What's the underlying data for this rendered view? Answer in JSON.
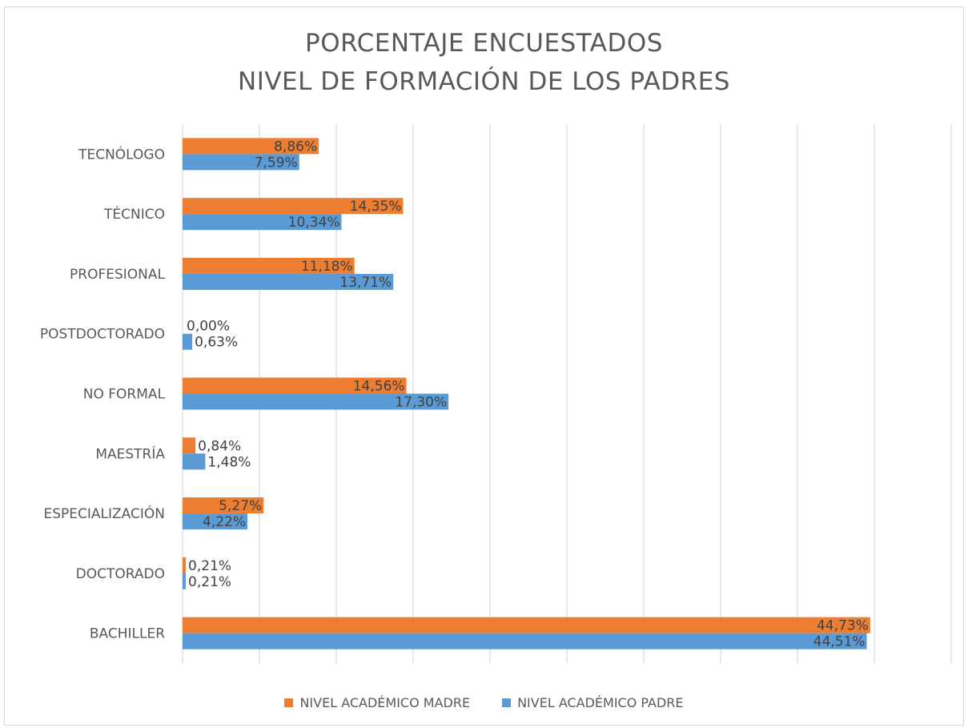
{
  "chart_data": {
    "type": "bar",
    "orientation": "horizontal",
    "title_lines": [
      "PORCENTAJE ENCUESTADOS",
      "NIVEL DE FORMACIÓN DE LOS PADRES"
    ],
    "categories": [
      "TECNÓLOGO",
      "TÉCNICO",
      "PROFESIONAL",
      "POSTDOCTORADO",
      "NO FORMAL",
      "MAESTRÍA",
      "ESPECIALIZACIÓN",
      "DOCTORADO",
      "BACHILLER"
    ],
    "series": [
      {
        "name": "NIVEL ACADÉMICO MADRE",
        "color": "#ED7D31",
        "values": [
          8.86,
          14.35,
          11.18,
          0.0,
          14.56,
          0.84,
          5.27,
          0.21,
          44.73
        ],
        "labels": [
          "8,86%",
          "14,35%",
          "11,18%",
          "0,00%",
          "14,56%",
          "0,84%",
          "5,27%",
          "0,21%",
          "44,73%"
        ]
      },
      {
        "name": "NIVEL ACADÉMICO PADRE",
        "color": "#5B9BD5",
        "values": [
          7.59,
          10.34,
          13.71,
          0.63,
          17.3,
          1.48,
          4.22,
          0.21,
          44.51
        ],
        "labels": [
          "7,59%",
          "10,34%",
          "13,71%",
          "0,63%",
          "17,30%",
          "1,48%",
          "4,22%",
          "0,21%",
          "44,51%"
        ]
      }
    ],
    "xlim": [
      0,
      50
    ],
    "x_grid_step": 5,
    "grid": true,
    "x_tick_labels_visible": false,
    "legend_position": "bottom"
  }
}
